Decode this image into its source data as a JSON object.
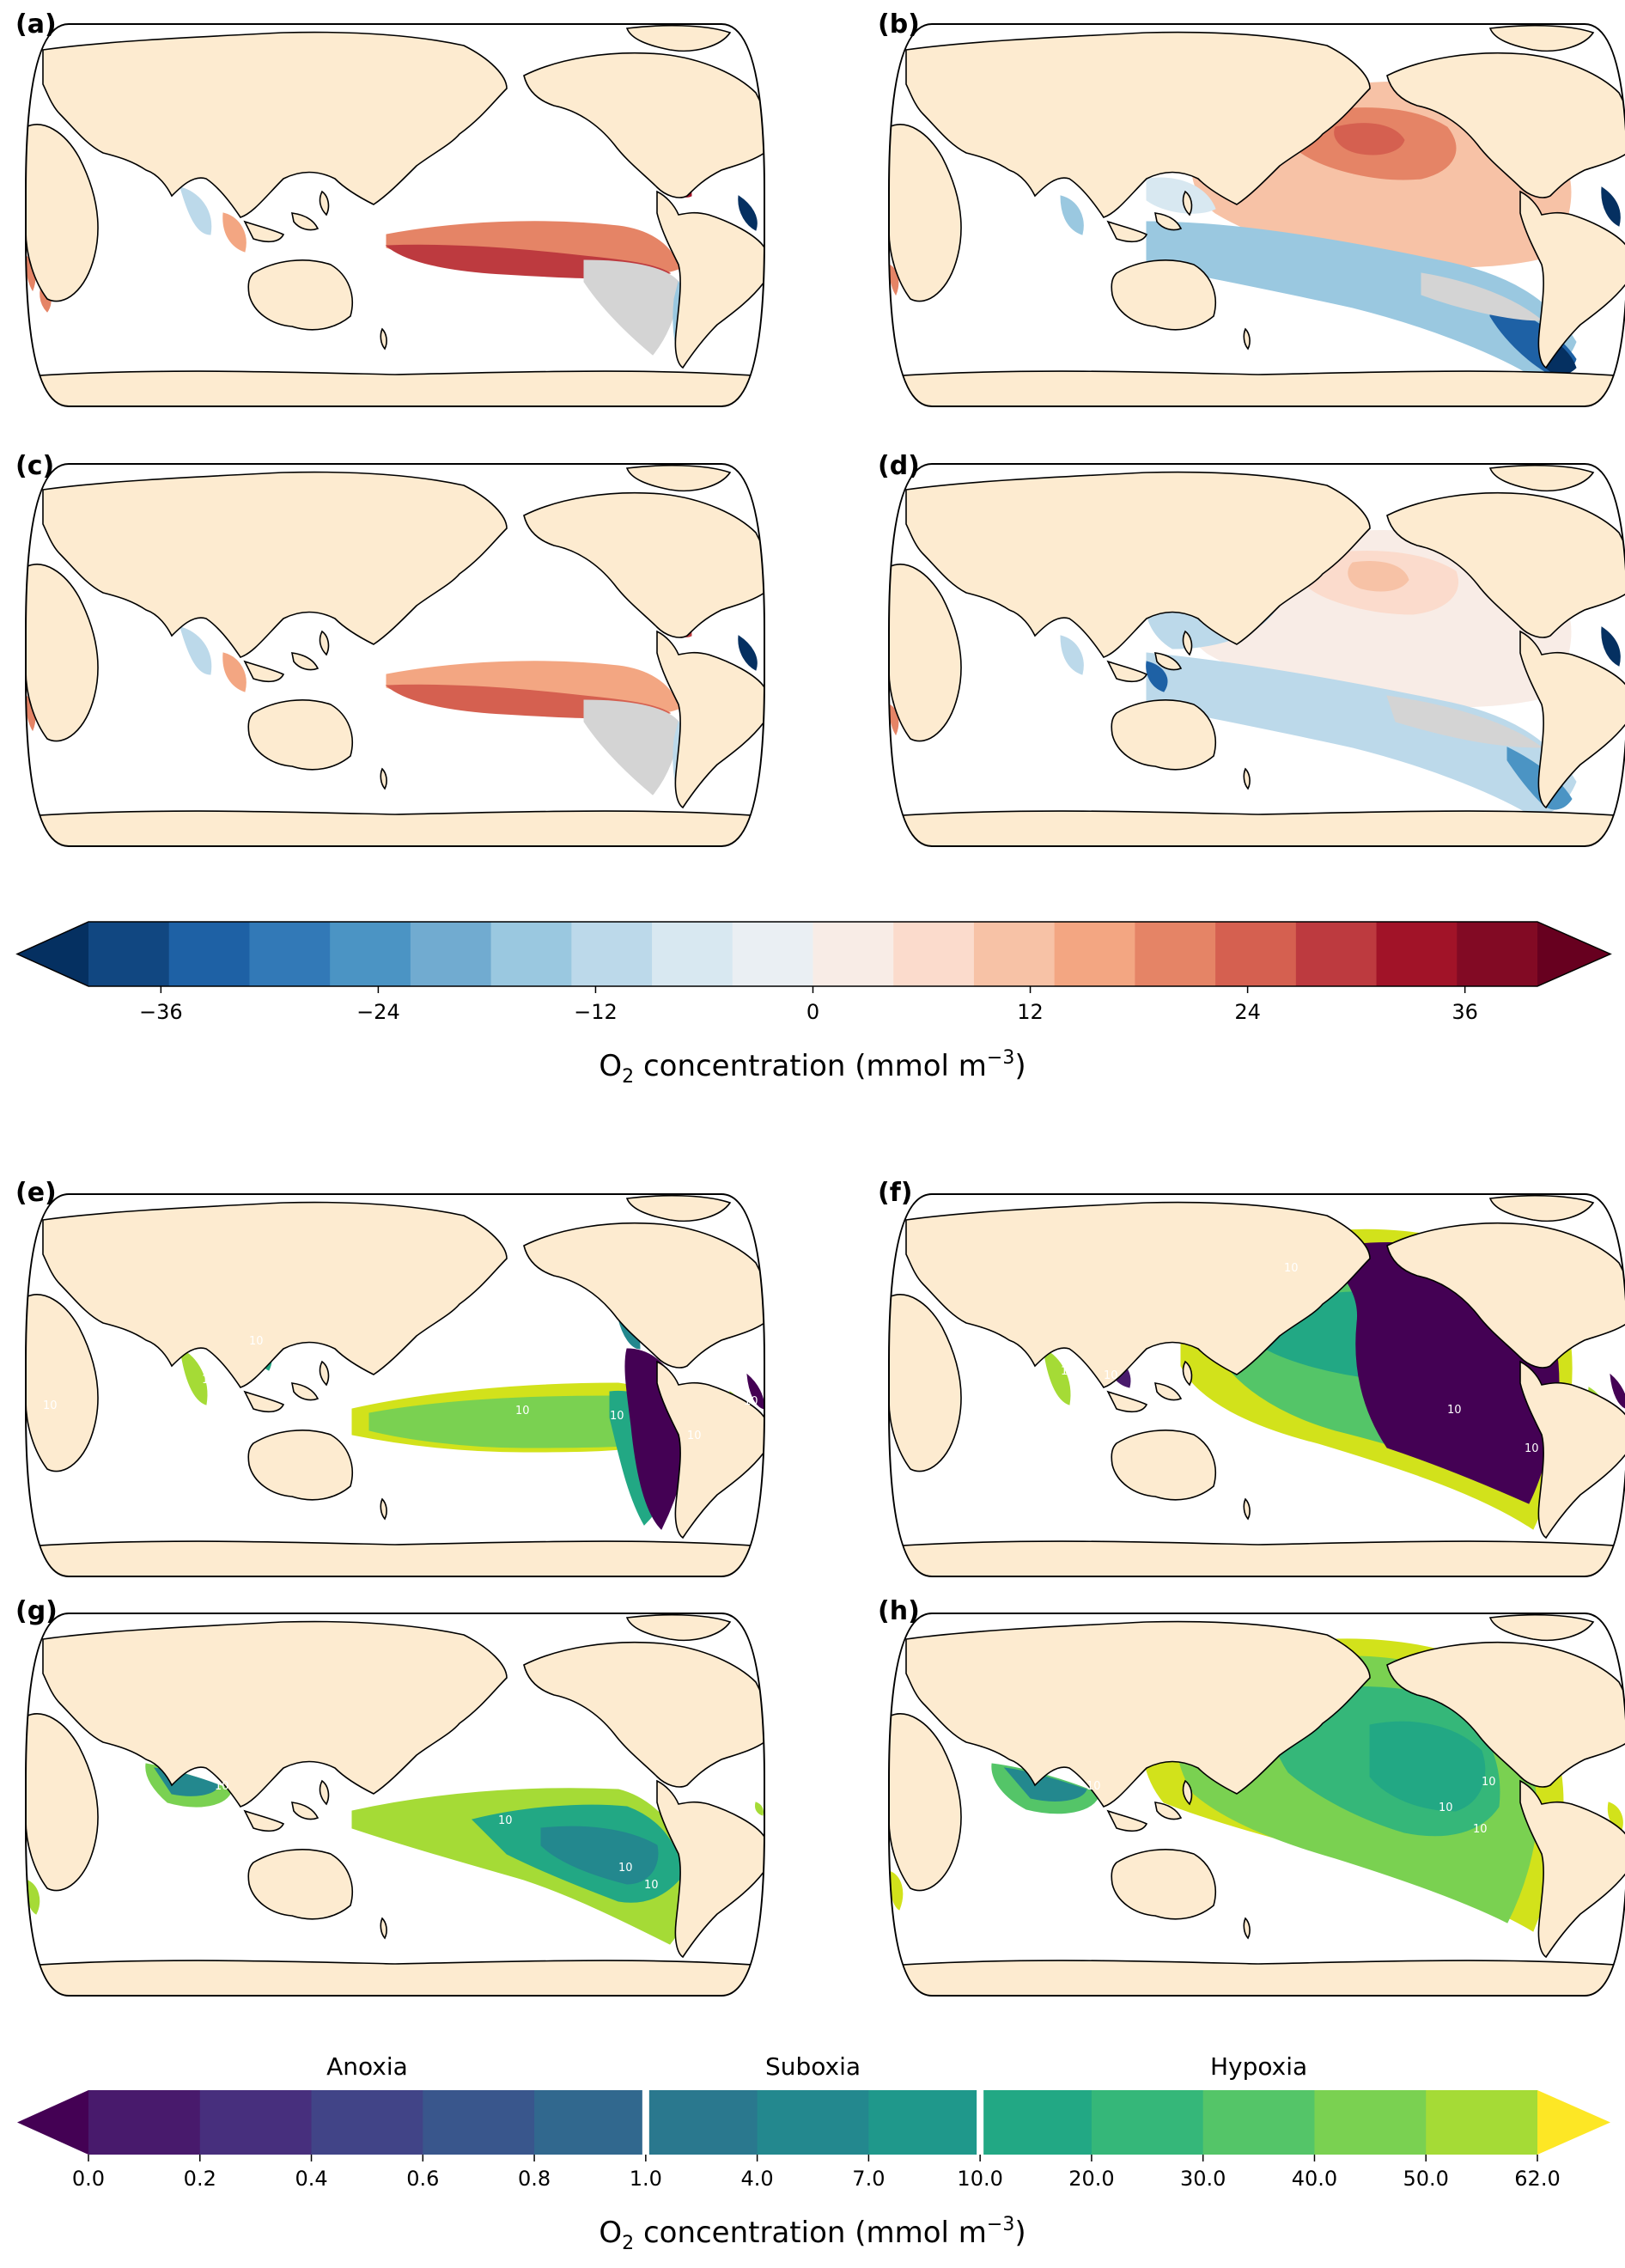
{
  "panels": [
    {
      "id": "a",
      "label": "(a)",
      "type": "anomaly"
    },
    {
      "id": "b",
      "label": "(b)",
      "type": "anomaly"
    },
    {
      "id": "c",
      "label": "(c)",
      "type": "anomaly"
    },
    {
      "id": "d",
      "label": "(d)",
      "type": "anomaly"
    },
    {
      "id": "e",
      "label": "(e)",
      "type": "concentration"
    },
    {
      "id": "f",
      "label": "(f)",
      "type": "concentration"
    },
    {
      "id": "g",
      "label": "(g)",
      "type": "concentration"
    },
    {
      "id": "h",
      "label": "(h)",
      "type": "concentration"
    }
  ],
  "contour_label": "10",
  "colorbar_anomaly": {
    "ticks": [
      "−36",
      "−24",
      "−12",
      "0",
      "12",
      "24",
      "36"
    ],
    "title_main": "O",
    "title_sub": "2",
    "title_rest": " concentration (mmol m",
    "title_sup": "−3",
    "title_end": ")",
    "colors": [
      "#053061",
      "#114781",
      "#1e61a5",
      "#3279b7",
      "#4b94c4",
      "#71abd0",
      "#9ac8e0",
      "#bcd9ea",
      "#d8e8f1",
      "#eaeff3",
      "#f8ece6",
      "#fbdbcc",
      "#f7c2a6",
      "#f3a682",
      "#e58466",
      "#d56050",
      "#bd3a3f",
      "#a11328",
      "#820a24",
      "#67001f"
    ]
  },
  "colorbar_concentration": {
    "zones": [
      "Anoxia",
      "Suboxia",
      "Hypoxia"
    ],
    "ticks": [
      "0.0",
      "0.2",
      "0.4",
      "0.6",
      "0.8",
      "1.0",
      "4.0",
      "7.0",
      "10.0",
      "20.0",
      "30.0",
      "40.0",
      "50.0",
      "62.0"
    ],
    "title_main": "O",
    "title_sub": "2",
    "title_rest": " concentration (mmol m",
    "title_sup": "−3",
    "title_end": ")",
    "colors": [
      "#440154",
      "#481a6c",
      "#472f7d",
      "#414487",
      "#39568c",
      "#31688e",
      "#2a788e",
      "#23888e",
      "#1f988b",
      "#22a884",
      "#35b779",
      "#54c568",
      "#7ad151",
      "#a5db36",
      "#d2e21b",
      "#fde725"
    ],
    "land_color": "#fdebd0",
    "mask_color": "#d4d4d4"
  }
}
